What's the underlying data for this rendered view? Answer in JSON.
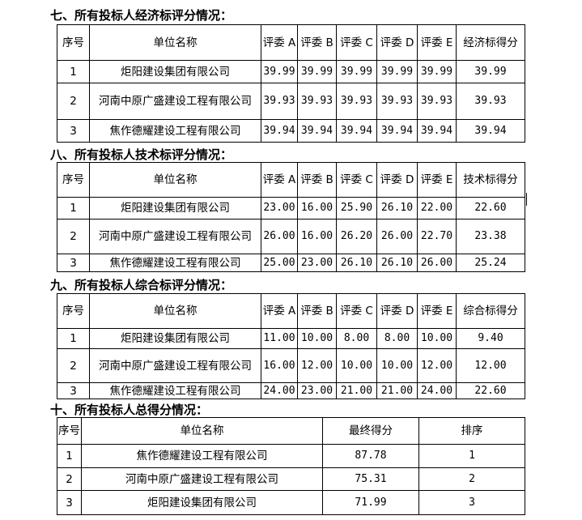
{
  "sections": [
    {
      "title": "七、所有投标人经济标评分情况：",
      "headers": [
        "序号",
        "单位名称",
        "评委 A",
        "评委 B",
        "评委 C",
        "评委 D",
        "评委 E",
        "经济标得分"
      ],
      "rows": [
        [
          "1",
          "炬阳建设集团有限公司",
          "39.99",
          "39.99",
          "39.99",
          "39.99",
          "39.99",
          "39.99"
        ],
        [
          "2",
          "河南中原广盛建设工程有限公司",
          "39.93",
          "39.93",
          "39.93",
          "39.93",
          "39.93",
          "39.93"
        ],
        [
          "3",
          "焦作德耀建设工程有限公司",
          "39.94",
          "39.94",
          "39.94",
          "39.94",
          "39.94",
          "39.94"
        ]
      ]
    },
    {
      "title": "八、所有投标人技术标评分情况：",
      "headers": [
        "序号",
        "单位名称",
        "评委 A",
        "评委 B",
        "评委 C",
        "评委 D",
        "评委 E",
        "技术标得分"
      ],
      "rows": [
        [
          "1",
          "炬阳建设集团有限公司",
          "23.00",
          "16.00",
          "25.90",
          "26.10",
          "22.00",
          "22.60"
        ],
        [
          "2",
          "河南中原广盛建设工程有限公司",
          "26.00",
          "16.00",
          "26.20",
          "26.00",
          "22.70",
          "23.38"
        ],
        [
          "3",
          "焦作德耀建设工程有限公司",
          "25.00",
          "23.00",
          "26.10",
          "26.10",
          "26.00",
          "25.24"
        ]
      ]
    },
    {
      "title": "九、所有投标人综合标评分情况：",
      "headers": [
        "序号",
        "单位名称",
        "评委 A",
        "评委 B",
        "评委 C",
        "评委 D",
        "评委 E",
        "综合标得分"
      ],
      "rows": [
        [
          "1",
          "炬阳建设集团有限公司",
          "11.00",
          "10.00",
          "8.00",
          "8.00",
          "10.00",
          "9.40"
        ],
        [
          "2",
          "河南中原广盛建设工程有限公司",
          "16.00",
          "12.00",
          "10.00",
          "10.00",
          "12.00",
          "12.00"
        ],
        [
          "3",
          "焦作德耀建设工程有限公司",
          "24.00",
          "23.00",
          "21.00",
          "21.00",
          "24.00",
          "22.60"
        ]
      ]
    },
    {
      "title": "十、所有投标人总得分情况：",
      "headers": [
        "序号",
        "单位名称",
        "最终得分",
        "排序"
      ],
      "rows": [
        [
          "1",
          "焦作德耀建设工程有限公司",
          "87.78",
          "1"
        ],
        [
          "2",
          "河南中原广盛建设工程有限公司",
          "75.31",
          "2"
        ],
        [
          "3",
          "炬阳建设集团有限公司",
          "71.99",
          "3"
        ]
      ]
    }
  ]
}
